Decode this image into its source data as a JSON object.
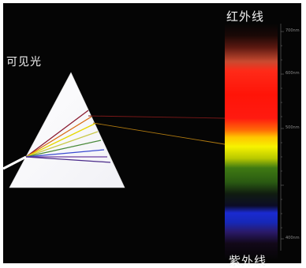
{
  "labels": {
    "visible_light": "可见光",
    "infrared": "红外线",
    "ultraviolet": "紫外线"
  },
  "scale_ticks": [
    "700nm",
    "600nm",
    "500nm",
    "400nm"
  ],
  "colors": {
    "background": "#050505",
    "prism": "#ffffff",
    "red": "#ff1a12",
    "orange": "#ff8a00",
    "yellow": "#f7f000",
    "green": "#2f7a1a",
    "blue": "#1a2cc8",
    "violet": "#5a2a9a"
  }
}
